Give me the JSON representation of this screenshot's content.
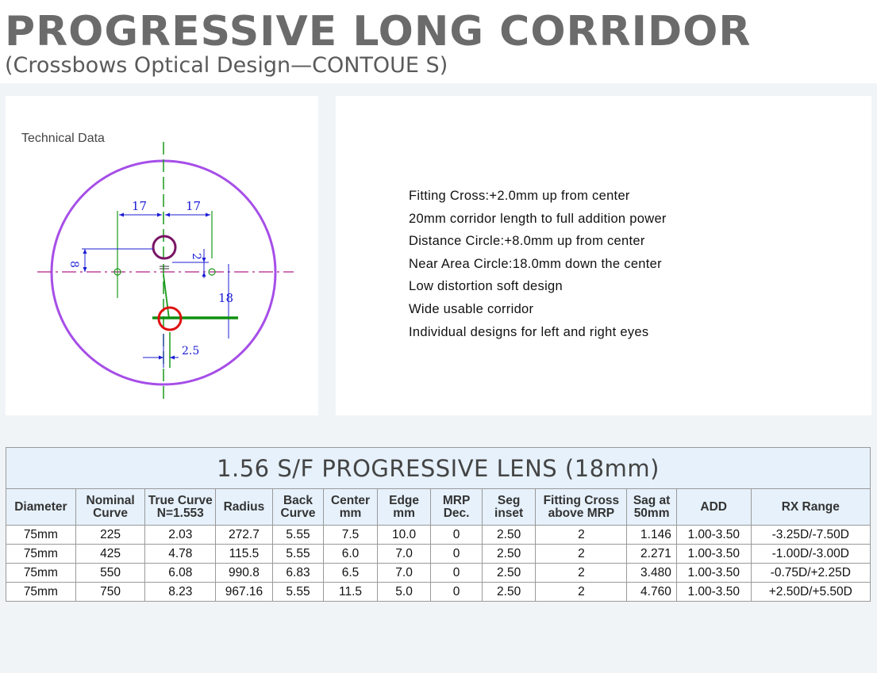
{
  "header": {
    "title": "PROGRESSIVE LONG CORRIDOR",
    "subtitle": "(Crossbows Optical Design—CONTOUE S)"
  },
  "technical": {
    "label": "Technical Data",
    "dims": {
      "left": "17",
      "right": "17",
      "up8": "8",
      "up2": "2",
      "right18": "18",
      "inset": "2.5"
    }
  },
  "features": [
    "Fitting Cross:+2.0mm up from center",
    "20mm corridor length to full addition power",
    "Distance Circle:+8.0mm up from center",
    "Near Area Circle:18.0mm down the center",
    "Low distortion soft design",
    "Wide usable corridor",
    "Individual designs for left and right eyes"
  ],
  "table": {
    "caption": "1.56 S/F PROGRESSIVE LENS (18mm)",
    "headers": [
      [
        "Diameter"
      ],
      [
        "Nominal",
        "Curve"
      ],
      [
        "True Curve",
        "N=1.553"
      ],
      [
        "Radius"
      ],
      [
        "Back",
        "Curve"
      ],
      [
        "Center",
        "mm"
      ],
      [
        "Edge",
        "mm"
      ],
      [
        "MRP",
        "Dec."
      ],
      [
        "Seg",
        "inset"
      ],
      [
        "Fitting Cross",
        "above MRP"
      ],
      [
        "Sag at",
        "50mm"
      ],
      [
        "ADD"
      ],
      [
        "RX Range"
      ]
    ],
    "rows": [
      [
        "75mm",
        "225",
        "2.03",
        "272.7",
        "5.55",
        "7.5",
        "10.0",
        "0",
        "2.50",
        "2",
        "1.146",
        "1.00-3.50",
        "-3.25D/-7.50D"
      ],
      [
        "75mm",
        "425",
        "4.78",
        "115.5",
        "5.55",
        "6.0",
        "7.0",
        "0",
        "2.50",
        "2",
        "2.271",
        "1.00-3.50",
        "-1.00D/-3.00D"
      ],
      [
        "75mm",
        "550",
        "6.08",
        "990.8",
        "6.83",
        "6.5",
        "7.0",
        "0",
        "2.50",
        "2",
        "3.480",
        "1.00-3.50",
        "-0.75D/+2.25D"
      ],
      [
        "75mm",
        "750",
        "8.23",
        "967.16",
        "5.55",
        "11.5",
        "5.0",
        "0",
        "2.50",
        "2",
        "4.760",
        "1.00-3.50",
        "+2.50D/+5.50D"
      ]
    ]
  },
  "colors": {
    "lens_outline": "#a64ee8",
    "green": "#1a9a1a",
    "blue": "#1c1cd6",
    "magenta_dash": "#b0208a",
    "far_circle": "#7a1565",
    "near_circle": "#e01010",
    "header_bg": "#e6f1fb"
  }
}
